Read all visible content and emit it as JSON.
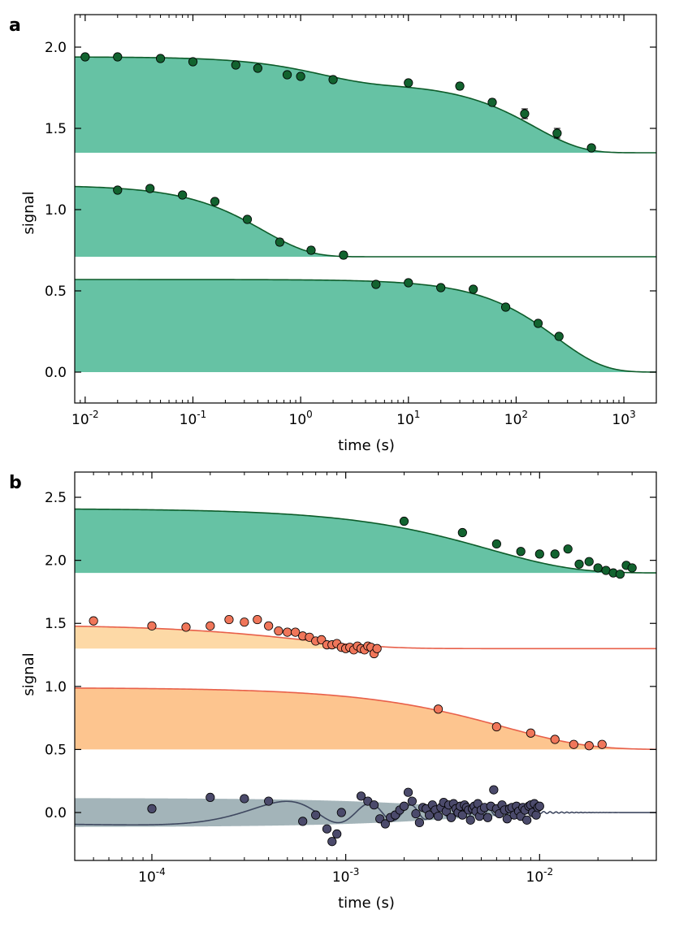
{
  "colors": {
    "green_fill": "#66c2a4",
    "green_line": "#0d5c2a",
    "green_marker": "#12632f",
    "light_orange_fill": "#fdd9a6",
    "orange_fill": "#fdc58f",
    "coral_line": "#e8604a",
    "coral_marker": "#f0765a",
    "slate_fill": "#a3b4b9",
    "slate_line": "#3f4860",
    "slate_marker": "#4b4a6b"
  },
  "chart_data": [
    {
      "panel_label": "a",
      "type": "scatter",
      "xscale": "log",
      "xlim": [
        0.008,
        2000
      ],
      "ylim": [
        -0.19,
        2.2
      ],
      "xlabel": "time (s)",
      "ylabel": "signal",
      "xticks": [
        {
          "value": 0.01,
          "base": "10",
          "exp": "-2"
        },
        {
          "value": 0.1,
          "base": "10",
          "exp": "-1"
        },
        {
          "value": 1,
          "base": "10",
          "exp": "0"
        },
        {
          "value": 10,
          "base": "10",
          "exp": "1"
        },
        {
          "value": 100,
          "base": "10",
          "exp": "2"
        },
        {
          "value": 1000,
          "base": "10",
          "exp": "3"
        }
      ],
      "yticks": [
        {
          "value": 0.0,
          "label": "0.0"
        },
        {
          "value": 0.5,
          "label": "0.5"
        },
        {
          "value": 1.0,
          "label": "1.0"
        },
        {
          "value": 1.5,
          "label": "1.5"
        },
        {
          "value": 2.0,
          "label": "2.0"
        }
      ],
      "series": [
        {
          "baseline": 1.35,
          "fill": "green_fill",
          "line": "green_line",
          "marker": "green_marker",
          "fit": {
            "x_start": 0.008,
            "x_end": 2000,
            "components": [
              {
                "amp": 0.16,
                "tau": 1.5
              },
              {
                "amp": 0.43,
                "tau": 150
              }
            ]
          },
          "x": [
            0.01,
            0.02,
            0.05,
            0.1,
            0.25,
            0.4,
            0.75,
            1.0,
            2.0,
            10,
            30,
            60,
            120,
            240,
            500
          ],
          "y": [
            1.94,
            1.94,
            1.93,
            1.91,
            1.89,
            1.87,
            1.83,
            1.82,
            1.8,
            1.78,
            1.76,
            1.66,
            1.59,
            1.47,
            1.38
          ],
          "err": [
            0,
            0,
            0,
            0,
            0,
            0,
            0,
            0,
            0,
            0,
            0.02,
            0.02,
            0.03,
            0.03,
            0.01
          ]
        },
        {
          "baseline": 0.71,
          "fill": "green_fill",
          "line": "green_line",
          "marker": "green_marker",
          "fit": {
            "x_start": 0.008,
            "x_end": 2000,
            "fill_end": 2.5,
            "components": [
              {
                "amp": 0.44,
                "tau": 0.45
              }
            ]
          },
          "x": [
            0.02,
            0.04,
            0.08,
            0.16,
            0.32,
            0.64,
            1.25,
            2.5
          ],
          "y": [
            1.12,
            1.13,
            1.09,
            1.05,
            0.94,
            0.8,
            0.75,
            0.72
          ],
          "err": [
            0,
            0,
            0,
            0,
            0,
            0.02,
            0.02,
            0.02
          ]
        },
        {
          "baseline": 0.0,
          "fill": "green_fill",
          "line": "green_line",
          "marker": "green_marker",
          "fit": {
            "x_start": 0.008,
            "x_end": 2000,
            "components": [
              {
                "amp": 0.57,
                "tau": 240
              }
            ]
          },
          "x": [
            5,
            10,
            20,
            40,
            80,
            160,
            250
          ],
          "y": [
            0.54,
            0.55,
            0.52,
            0.51,
            0.4,
            0.3,
            0.22
          ],
          "err": [
            0,
            0,
            0,
            0,
            0,
            0,
            0
          ]
        }
      ]
    },
    {
      "panel_label": "b",
      "type": "scatter",
      "xscale": "log",
      "xlim": [
        4e-05,
        0.04
      ],
      "ylim": [
        -0.38,
        2.7
      ],
      "xlabel": "time (s)",
      "ylabel": "signal",
      "xticks": [
        {
          "value": 0.0001,
          "base": "10",
          "exp": "-4"
        },
        {
          "value": 0.001,
          "base": "10",
          "exp": "-3"
        },
        {
          "value": 0.01,
          "base": "10",
          "exp": "-2"
        }
      ],
      "yticks": [
        {
          "value": 0.0,
          "label": "0.0"
        },
        {
          "value": 0.5,
          "label": "0.5"
        },
        {
          "value": 1.0,
          "label": "1.0"
        },
        {
          "value": 1.5,
          "label": "1.5"
        },
        {
          "value": 2.0,
          "label": "2.0"
        },
        {
          "value": 2.5,
          "label": "2.5"
        }
      ],
      "series": [
        {
          "baseline": 1.9,
          "fill": "green_fill",
          "line": "green_line",
          "marker": "green_marker",
          "fit": {
            "x_start": 4e-05,
            "x_end": 0.04,
            "components": [
              {
                "amp": 0.51,
                "tau": 0.0055
              }
            ]
          },
          "x": [
            0.002,
            0.004,
            0.006,
            0.008,
            0.01,
            0.012,
            0.014,
            0.016,
            0.018,
            0.02,
            0.022,
            0.024,
            0.026,
            0.028,
            0.03
          ],
          "y": [
            2.31,
            2.22,
            2.13,
            2.07,
            2.05,
            2.05,
            2.09,
            1.97,
            1.99,
            1.94,
            1.92,
            1.9,
            1.89,
            1.96,
            1.94
          ]
        },
        {
          "baseline": 1.3,
          "fill": "light_orange_fill",
          "line": "coral_line",
          "marker": "coral_marker",
          "fit": {
            "x_start": 4e-05,
            "x_end": 0.04,
            "fill_end": 0.0015,
            "components": [
              {
                "amp": 0.19,
                "tau": 0.0006
              }
            ]
          },
          "x": [
            5e-05,
            0.0001,
            0.00015,
            0.0002,
            0.00025,
            0.0003,
            0.00035,
            0.0004,
            0.00045,
            0.0005,
            0.00055,
            0.0006,
            0.00065,
            0.0007,
            0.00075,
            0.0008,
            0.00085,
            0.0009,
            0.00095,
            0.001,
            0.00105,
            0.0011,
            0.00115,
            0.0012,
            0.00125,
            0.0013,
            0.00135,
            0.0014,
            0.00145
          ],
          "y": [
            1.52,
            1.48,
            1.47,
            1.48,
            1.53,
            1.51,
            1.53,
            1.48,
            1.44,
            1.43,
            1.43,
            1.4,
            1.39,
            1.36,
            1.37,
            1.33,
            1.33,
            1.34,
            1.31,
            1.3,
            1.31,
            1.29,
            1.32,
            1.3,
            1.29,
            1.32,
            1.31,
            1.26,
            1.3
          ]
        },
        {
          "baseline": 0.5,
          "fill": "orange_fill",
          "line": "coral_line",
          "marker": "coral_marker",
          "fit": {
            "x_start": 4e-05,
            "x_end": 0.04,
            "components": [
              {
                "amp": 0.49,
                "tau": 0.0065
              }
            ]
          },
          "x": [
            0.003,
            0.006,
            0.009,
            0.012,
            0.015,
            0.018,
            0.021
          ],
          "y": [
            0.82,
            0.68,
            0.63,
            0.58,
            0.54,
            0.53,
            0.54
          ]
        },
        {
          "baseline": 0.0,
          "fill": "slate_fill",
          "line": "slate_line",
          "marker": "slate_marker",
          "oscillating": true,
          "fit": {
            "x_start": 4e-05,
            "x_end": 0.04,
            "fill_end": 0.01,
            "amp": 0.1,
            "freq": 1200,
            "phase": -2.2,
            "decay_tau": 0.0042,
            "edge_amp": 0.115
          },
          "x": [
            0.0001,
            0.0002,
            0.0003,
            0.0004,
            0.0006,
            0.0007,
            0.0008,
            0.00085,
            0.0009,
            0.00095,
            0.0012,
            0.0013,
            0.0014,
            0.0015,
            0.0016,
            0.0017,
            0.0018,
            0.0019,
            0.002,
            0.0021,
            0.0022,
            0.0023,
            0.0024,
            0.0025,
            0.0026,
            0.0027,
            0.0028,
            0.0029,
            0.003,
            0.0031,
            0.0032,
            0.0033,
            0.0034,
            0.0035,
            0.0036,
            0.0037,
            0.0038,
            0.0039,
            0.004,
            0.0041,
            0.0042,
            0.0043,
            0.0044,
            0.0045,
            0.0046,
            0.0047,
            0.0048,
            0.0049,
            0.005,
            0.0052,
            0.0054,
            0.0056,
            0.0058,
            0.006,
            0.0062,
            0.0064,
            0.0066,
            0.0068,
            0.007,
            0.0072,
            0.0074,
            0.0076,
            0.0078,
            0.008,
            0.0082,
            0.0084,
            0.0086,
            0.0088,
            0.009,
            0.0092,
            0.0094,
            0.0096,
            0.0098,
            0.01
          ],
          "y": [
            0.03,
            0.12,
            0.11,
            0.09,
            -0.07,
            -0.02,
            -0.13,
            -0.23,
            -0.17,
            0.0,
            0.13,
            0.09,
            0.06,
            -0.05,
            -0.09,
            -0.04,
            -0.02,
            0.02,
            0.05,
            0.16,
            0.09,
            -0.01,
            -0.08,
            0.04,
            0.03,
            -0.02,
            0.06,
            0.02,
            -0.03,
            0.04,
            0.08,
            0.01,
            0.06,
            -0.04,
            0.07,
            0.03,
            0.0,
            0.05,
            -0.02,
            0.06,
            0.04,
            0.02,
            -0.06,
            0.03,
            0.05,
            0.01,
            0.07,
            -0.03,
            0.02,
            0.04,
            -0.04,
            0.05,
            0.18,
            0.03,
            -0.01,
            0.06,
            0.02,
            -0.05,
            0.03,
            0.04,
            -0.02,
            0.05,
            0.01,
            -0.03,
            0.04,
            0.02,
            -0.06,
            0.05,
            0.06,
            0.0,
            0.07,
            -0.02,
            0.04,
            0.05
          ]
        }
      ]
    }
  ]
}
